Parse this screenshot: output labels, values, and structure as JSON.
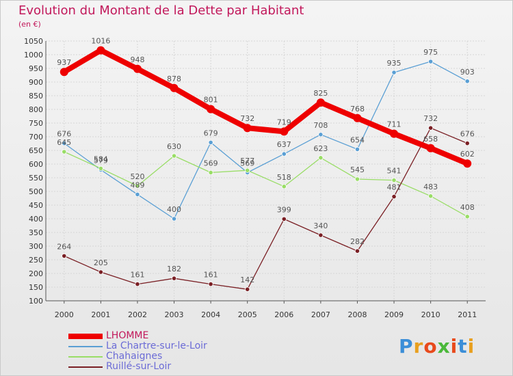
{
  "title": "Evolution du Montant de la Dette par Habitant",
  "subtitle": "(en €)",
  "logo": {
    "text": "Proxiti",
    "letter_colors": [
      "#3b8ed8",
      "#e8a020",
      "#e84a1c",
      "#4ab83a",
      "#e84a1c",
      "#3b8ed8",
      "#e8a020"
    ]
  },
  "chart_data": {
    "type": "line",
    "title": "Evolution du Montant de la Dette par Habitant",
    "ylabel": "(en €)",
    "xlabel": "",
    "ylim": [
      100,
      1050
    ],
    "yticks": [
      "100",
      "150",
      "200",
      "250",
      "300",
      "350",
      "400",
      "450",
      "500",
      "550",
      "600",
      "650",
      "700",
      "750",
      "800",
      "850",
      "900",
      "950",
      "1000",
      "1050"
    ],
    "x": [
      "2000",
      "2001",
      "2002",
      "2003",
      "2004",
      "2005",
      "2006",
      "2007",
      "2008",
      "2009",
      "2010",
      "2011"
    ],
    "grid": true,
    "legend_position": "bottom-left",
    "series": [
      {
        "name": "LHOMME",
        "color": "#ee0000",
        "values": [
          937,
          1016,
          948,
          878,
          801,
          732,
          719,
          825,
          768,
          711,
          658,
          602
        ]
      },
      {
        "name": "La Chartre-sur-le-Loir",
        "color": "#5a9fd4",
        "values": [
          676,
          579,
          489,
          400,
          679,
          569,
          637,
          708,
          654,
          935,
          975,
          903
        ]
      },
      {
        "name": "Chahaignes",
        "color": "#99dd66",
        "values": [
          645,
          584,
          520,
          630,
          569,
          577,
          518,
          623,
          545,
          541,
          483,
          408
        ]
      },
      {
        "name": "Ruillé-sur-Loir",
        "color": "#7a1f24",
        "values": [
          264,
          205,
          161,
          182,
          161,
          142,
          399,
          340,
          282,
          481,
          732,
          676
        ]
      }
    ]
  }
}
